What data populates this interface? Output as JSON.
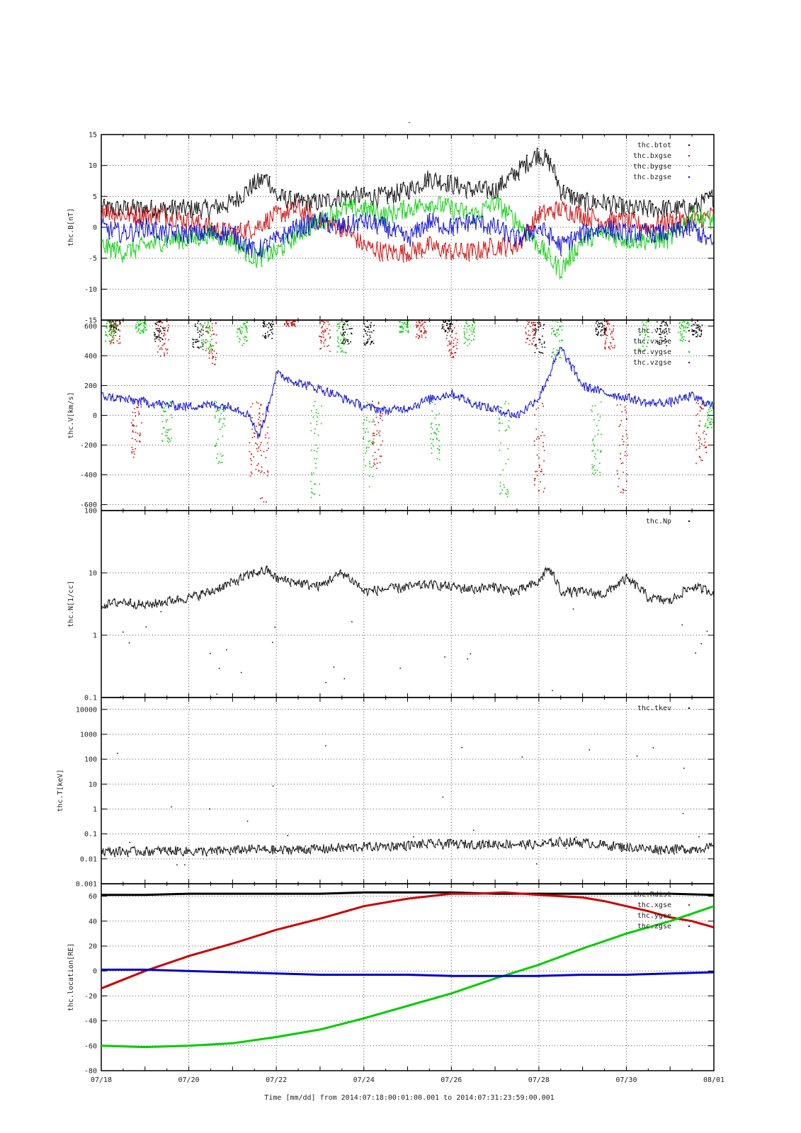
{
  "page": {
    "top_mark": "-"
  },
  "x_axis": {
    "ticks": [
      "07/18",
      "07/20",
      "07/22",
      "07/24",
      "07/26",
      "07/28",
      "07/30",
      "08/01"
    ],
    "label": "Time [mm/dd]  from 2014:07:18:00:01:00.001  to  2014:07:31:23:59:00.001"
  },
  "colors": {
    "black": "#000000",
    "red": "#cc0000",
    "green": "#00cc00",
    "blue": "#0000cc",
    "grid": "#555555"
  },
  "chart_data": [
    {
      "type": "scatter",
      "ylabel": "thc.B[nT]",
      "ylim": [
        -15,
        15
      ],
      "yticks": [
        {
          "v": 15,
          "label": "15"
        },
        {
          "v": 10,
          "label": "10"
        },
        {
          "v": 5,
          "label": "5"
        },
        {
          "v": 0,
          "label": "0"
        },
        {
          "v": -5,
          "label": "-5"
        },
        {
          "v": -10,
          "label": "-10"
        },
        {
          "v": -15,
          "label": "-15"
        }
      ],
      "legend_position": "top-right",
      "series": [
        {
          "name": "thc.btot",
          "color": "#000000",
          "x": [
            0,
            0.5,
            1,
            1.5,
            2,
            2.5,
            3,
            3.5,
            3.8,
            4,
            4.5,
            5,
            5.5,
            6,
            6.5,
            7,
            7.5,
            8,
            8.5,
            9,
            9.5,
            10,
            10.3,
            10.5,
            11,
            11.5,
            12,
            12.5,
            13,
            13.5,
            14
          ],
          "y": [
            3,
            3,
            3,
            3,
            3,
            3,
            4,
            7,
            8,
            5,
            4,
            4,
            5,
            5,
            5,
            6,
            8,
            7,
            6,
            6,
            9,
            12,
            10,
            6,
            4,
            4,
            3,
            3,
            3,
            3,
            5
          ]
        },
        {
          "name": "thc.bxgse",
          "color": "#cc0000",
          "x": [
            0,
            0.5,
            1,
            1.5,
            2,
            2.5,
            3,
            3.5,
            4,
            4.5,
            5,
            5.5,
            6,
            6.5,
            7,
            7.5,
            8,
            8.5,
            9,
            9.5,
            10,
            10.5,
            11,
            11.5,
            12,
            12.5,
            13,
            13.5,
            14
          ],
          "y": [
            3,
            2,
            2,
            2,
            1,
            0,
            -1,
            0,
            2,
            3,
            1,
            0,
            -3,
            -4,
            -4,
            -3,
            -4,
            -4,
            -3,
            -3,
            2,
            3,
            2,
            1,
            1,
            0,
            1,
            1,
            2
          ]
        },
        {
          "name": "thc.bygse",
          "color": "#00cc00",
          "x": [
            0,
            0.5,
            1,
            1.5,
            2,
            2.5,
            3,
            3.5,
            4,
            4.5,
            5,
            5.5,
            6,
            6.5,
            7,
            7.5,
            8,
            8.5,
            9,
            9.5,
            10,
            10.5,
            11,
            11.5,
            12,
            12.5,
            13,
            13.5,
            14
          ],
          "y": [
            -3,
            -4,
            -3,
            -2,
            -2,
            -1,
            -2,
            -5,
            -4,
            -1,
            1,
            3,
            3,
            2,
            3,
            4,
            3,
            2,
            4,
            1,
            -3,
            -7,
            -2,
            -1,
            -2,
            -2,
            -2,
            2,
            1
          ]
        },
        {
          "name": "thc.bzgse",
          "color": "#0000cc",
          "x": [
            0,
            0.5,
            1,
            1.5,
            2,
            2.5,
            3,
            3.5,
            4,
            4.5,
            5,
            5.5,
            6,
            6.5,
            7,
            7.5,
            8,
            8.5,
            9,
            9.5,
            10,
            10.5,
            11,
            11.5,
            12,
            12.5,
            13,
            13.5,
            14
          ],
          "y": [
            0,
            -1,
            0,
            -1,
            -1,
            -1,
            -1,
            -4,
            -2,
            0,
            1,
            0,
            1,
            0,
            -2,
            1,
            0,
            1,
            0,
            -2,
            0,
            -3,
            -1,
            0,
            -1,
            -1,
            -1,
            0,
            -3
          ]
        }
      ]
    },
    {
      "type": "scatter",
      "ylabel": "thc.V[km/s]",
      "ylim": [
        -640,
        640
      ],
      "yticks": [
        {
          "v": 600,
          "label": "600"
        },
        {
          "v": 400,
          "label": "400"
        },
        {
          "v": 200,
          "label": "200"
        },
        {
          "v": 0,
          "label": "0"
        },
        {
          "v": -200,
          "label": "-200"
        },
        {
          "v": -400,
          "label": "-400"
        },
        {
          "v": -600,
          "label": "-600"
        }
      ],
      "legend_position": "top-right",
      "series": [
        {
          "name": "thc.vtot",
          "color": "#000000",
          "x": [
            0.3,
            1.3,
            2.2,
            3.8,
            5.6,
            6.1,
            7.9,
            10,
            11.4,
            12.8,
            13.6
          ],
          "y": [
            560,
            500,
            450,
            520,
            480,
            470,
            560,
            420,
            540,
            470,
            530
          ]
        },
        {
          "name": "thc.vxgse",
          "color": "#cc0000",
          "x": [
            0.3,
            0.8,
            1.4,
            2.5,
            3.5,
            3.7,
            4.3,
            5.1,
            6.3,
            7.3,
            8,
            9.8,
            10,
            11.6,
            11.9,
            13.7
          ],
          "y": [
            480,
            -300,
            400,
            330,
            -420,
            -580,
            600,
            430,
            -380,
            520,
            380,
            470,
            -550,
            450,
            -540,
            -320
          ]
        },
        {
          "name": "thc.vygse",
          "color": "#00cc00",
          "x": [
            0.2,
            0.9,
            1.5,
            2.4,
            2.7,
            3.2,
            4.9,
            5.5,
            6.1,
            6.9,
            7.6,
            8.4,
            9.2,
            10.4,
            11.3,
            12.4,
            13.3,
            13.9
          ],
          "y": [
            500,
            550,
            -180,
            430,
            -320,
            470,
            -550,
            420,
            -480,
            560,
            -300,
            470,
            -560,
            380,
            -400,
            430,
            500,
            -90
          ]
        },
        {
          "name": "thc.vzgse",
          "color": "#0000cc",
          "x": [
            0,
            0.5,
            1,
            1.5,
            2,
            2.5,
            3,
            3.4,
            3.6,
            3.8,
            4,
            4.5,
            5,
            5.5,
            6,
            6.5,
            7,
            7.5,
            8,
            8.5,
            9,
            9.5,
            10,
            10.5,
            11,
            11.5,
            12,
            12.5,
            13,
            13.5,
            14
          ],
          "y": [
            130,
            110,
            90,
            70,
            60,
            70,
            60,
            0,
            -150,
            50,
            280,
            220,
            180,
            120,
            60,
            30,
            50,
            110,
            150,
            80,
            40,
            0,
            120,
            450,
            200,
            150,
            120,
            80,
            90,
            130,
            60
          ]
        }
      ]
    },
    {
      "type": "scatter",
      "ylabel": "thc.N[1/cc]",
      "yscale": "log",
      "ylim": [
        0.1,
        100
      ],
      "yticks": [
        {
          "v": 100,
          "label": "100"
        },
        {
          "v": 10,
          "label": "10"
        },
        {
          "v": 1,
          "label": "1"
        },
        {
          "v": 0.1,
          "label": "0.1"
        }
      ],
      "legend_position": "top-right",
      "series": [
        {
          "name": "thc.Np",
          "color": "#000000",
          "x": [
            0,
            0.5,
            1,
            1.5,
            2,
            2.5,
            3,
            3.5,
            3.8,
            4,
            4.5,
            5,
            5.5,
            6,
            6.5,
            7,
            7.5,
            8,
            8.5,
            9,
            9.5,
            10,
            10.2,
            10.5,
            11,
            11.5,
            12,
            12.5,
            13,
            13.5,
            14
          ],
          "y": [
            3,
            3.5,
            3,
            3.5,
            4,
            5,
            7,
            10,
            11,
            8,
            7,
            6,
            10,
            5,
            5.5,
            6,
            6.5,
            6,
            5.5,
            6,
            5,
            7,
            12,
            5,
            5,
            4.5,
            8,
            4,
            3.5,
            6,
            5
          ]
        }
      ]
    },
    {
      "type": "scatter",
      "ylabel": "thc.T[keV]",
      "yscale": "log",
      "ylim": [
        0.001,
        30000
      ],
      "yticks": [
        {
          "v": 10000,
          "label": "10000"
        },
        {
          "v": 1000,
          "label": "1000"
        },
        {
          "v": 100,
          "label": "100"
        },
        {
          "v": 10,
          "label": "10"
        },
        {
          "v": 1,
          "label": "1"
        },
        {
          "v": 0.1,
          "label": "0.1"
        },
        {
          "v": 0.01,
          "label": "0.01"
        },
        {
          "v": 0.001,
          "label": "0.001"
        }
      ],
      "legend_position": "top-right",
      "series": [
        {
          "name": "thc.tkev",
          "color": "#000000",
          "x": [
            0,
            0.5,
            1,
            1.5,
            2,
            2.5,
            3,
            3.5,
            4,
            4.5,
            5,
            5.5,
            6,
            6.5,
            7,
            7.5,
            8,
            8.5,
            9,
            9.5,
            10,
            10.5,
            11,
            11.5,
            12,
            12.5,
            13,
            13.5,
            14
          ],
          "y": [
            0.02,
            0.02,
            0.02,
            0.022,
            0.02,
            0.02,
            0.022,
            0.025,
            0.022,
            0.024,
            0.025,
            0.028,
            0.03,
            0.032,
            0.035,
            0.04,
            0.04,
            0.038,
            0.04,
            0.04,
            0.035,
            0.05,
            0.045,
            0.035,
            0.03,
            0.025,
            0.025,
            0.025,
            0.03
          ]
        }
      ]
    },
    {
      "type": "line",
      "ylabel": "thc.location[RE]",
      "ylim": [
        -80,
        70
      ],
      "yticks": [
        {
          "v": 60,
          "label": "60"
        },
        {
          "v": 40,
          "label": "40"
        },
        {
          "v": 20,
          "label": "20"
        },
        {
          "v": 0,
          "label": "0"
        },
        {
          "v": -20,
          "label": "-20"
        },
        {
          "v": -40,
          "label": "-40"
        },
        {
          "v": -60,
          "label": "-60"
        },
        {
          "v": -80,
          "label": "-80"
        }
      ],
      "legend_position": "top-right",
      "series": [
        {
          "name": "thc.Rdist",
          "color": "#000000",
          "x": [
            0,
            1,
            2,
            3,
            4,
            5,
            6,
            7,
            8,
            9,
            10,
            11,
            12,
            13,
            14
          ],
          "y": [
            61,
            61,
            62,
            62,
            62,
            62,
            63,
            63,
            63,
            62,
            62,
            62,
            62,
            62,
            61
          ]
        },
        {
          "name": "thc.xgse",
          "color": "#cc0000",
          "x": [
            0,
            1,
            2,
            3,
            4,
            5,
            6,
            7,
            8,
            8.6,
            9.2,
            10,
            11,
            11.5,
            12,
            12.5,
            13,
            13.5,
            14
          ],
          "y": [
            -14,
            0,
            12,
            22,
            33,
            42,
            52,
            58,
            62,
            62,
            63,
            61,
            59,
            56,
            52,
            48,
            43,
            40,
            35
          ]
        },
        {
          "name": "thc.ygse",
          "color": "#00cc00",
          "x": [
            0,
            1,
            2,
            3,
            4,
            5,
            6,
            7,
            8,
            9,
            10,
            11,
            12,
            13,
            14
          ],
          "y": [
            -60,
            -61,
            -60,
            -58,
            -53,
            -47,
            -38,
            -28,
            -18,
            -6,
            5,
            18,
            30,
            40,
            52
          ]
        },
        {
          "name": "thc.zgse",
          "color": "#0000cc",
          "x": [
            0,
            1,
            2,
            3,
            4,
            5,
            6,
            7,
            8,
            9,
            10,
            11,
            12,
            13,
            14
          ],
          "y": [
            1,
            1,
            0,
            -1,
            -2,
            -3,
            -3,
            -3,
            -4,
            -4,
            -4,
            -3,
            -3,
            -2,
            -1
          ]
        }
      ]
    }
  ]
}
